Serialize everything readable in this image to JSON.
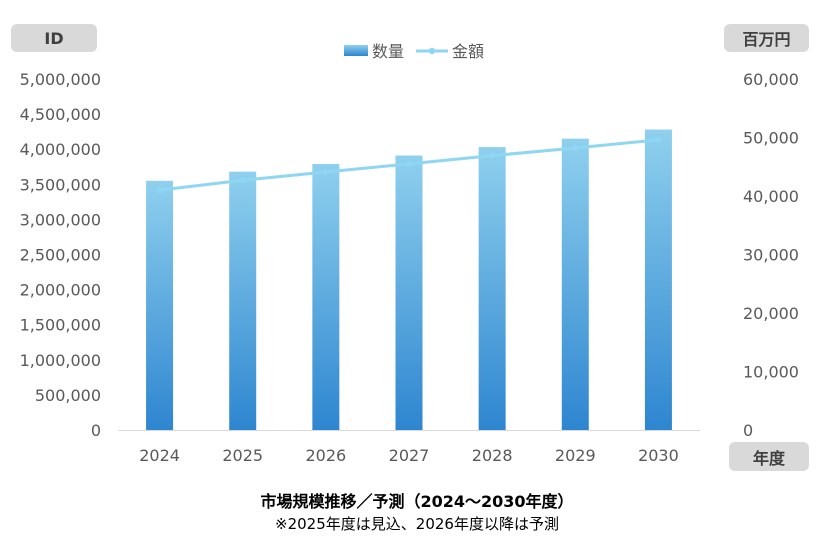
{
  "header": {
    "left_axis_unit": "ID",
    "right_axis_unit": "百万円",
    "x_axis_unit": "年度"
  },
  "caption": {
    "title": "市場規模推移／予測（2024～2030年度）",
    "note": "※2025年度は見込、2026年度以降は予測"
  },
  "colors": {
    "bar_top": "#8fd0ee",
    "bar_bottom": "#2e86d0",
    "line": "#8fd6f2",
    "axis_text": "#595959",
    "tag_bg": "#d9d9d9"
  },
  "chart_data": {
    "type": "bar",
    "categories": [
      "2024",
      "2025",
      "2026",
      "2027",
      "2028",
      "2029",
      "2030"
    ],
    "series": [
      {
        "name": "数量",
        "type": "bar",
        "axis": "left",
        "values": [
          3550000,
          3680000,
          3790000,
          3910000,
          4030000,
          4150000,
          4280000
        ]
      },
      {
        "name": "金額",
        "type": "line",
        "axis": "right",
        "values": [
          41000,
          42700,
          44100,
          45500,
          46900,
          48200,
          49600
        ]
      }
    ],
    "y_left": {
      "min": 0,
      "max": 5000000,
      "step": 500000
    },
    "y_right": {
      "min": 0,
      "max": 60000,
      "step": 10000
    },
    "y_left_ticks": [
      "0",
      "500,000",
      "1,000,000",
      "1,500,000",
      "2,000,000",
      "2,500,000",
      "3,000,000",
      "3,500,000",
      "4,000,000",
      "4,500,000",
      "5,000,000"
    ],
    "y_right_ticks": [
      "0",
      "10,000",
      "20,000",
      "30,000",
      "40,000",
      "50,000",
      "60,000"
    ],
    "legend_position": "top-center",
    "grid": false
  }
}
